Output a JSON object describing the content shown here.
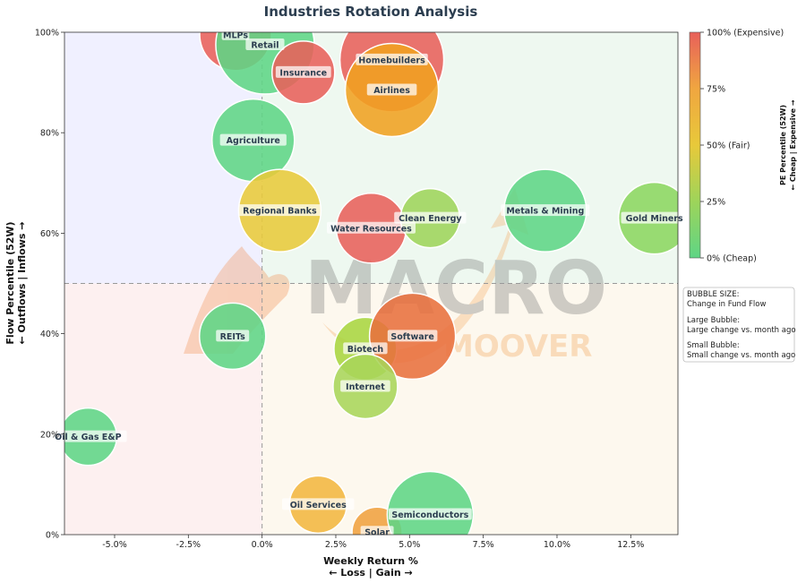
{
  "chart_data": {
    "type": "scatter",
    "title": "Industries Rotation Analysis",
    "xlabel_line1": "Weekly Return %",
    "xlabel_line2": "← Loss | Gain →",
    "ylabel_line1": "Flow Percentile (52W)",
    "ylabel_line2": "← Outflows | Inflows →",
    "xlim": [
      -6.7,
      14.1
    ],
    "ylim": [
      0,
      100
    ],
    "x_ticks": [
      -5.0,
      -2.5,
      0.0,
      2.5,
      5.0,
      7.5,
      10.0,
      12.5
    ],
    "x_tick_labels": [
      "-5.0%",
      "-2.5%",
      "0.0%",
      "2.5%",
      "5.0%",
      "7.5%",
      "10.0%",
      "12.5%"
    ],
    "y_ticks": [
      0,
      20,
      40,
      60,
      80,
      100
    ],
    "y_tick_labels": [
      "0%",
      "20%",
      "40%",
      "60%",
      "80%",
      "100%"
    ],
    "reference_lines": {
      "x": 0,
      "y": 50
    },
    "quadrant_colors": {
      "top_left": "#f0f0ff",
      "top_right": "#eef8f0",
      "bottom_left": "#fdf0f0",
      "bottom_right": "#fdf8ee"
    },
    "colorbar": {
      "title_line1": "PE Percentile (52W)",
      "title_line2": "← Cheap | Expensive →",
      "range": [
        0,
        100
      ],
      "colors": [
        "#5fd585",
        "#9ed45a",
        "#e8c93a",
        "#f0a640",
        "#e8605a"
      ],
      "ticks": [
        0,
        25,
        50,
        75,
        100
      ],
      "tick_labels": [
        "0% (Cheap)",
        "25%",
        "50% (Fair)",
        "75%",
        "100% (Expensive)"
      ]
    },
    "size_note": {
      "title": "BUBBLE SIZE:",
      "line1": "Change in Fund Flow",
      "large_title": "Large Bubble:",
      "large_desc": "Large change vs. month ago",
      "small_title": "Small Bubble:",
      "small_desc": "Small change vs. month ago"
    },
    "watermark": {
      "line1": "MACRO",
      "line2": "MOOVER"
    },
    "points": [
      {
        "name": "MLPs",
        "x": -0.9,
        "y": 99.5,
        "size": 40,
        "color": "#e8605a"
      },
      {
        "name": "Retail",
        "x": 0.1,
        "y": 97.5,
        "size": 55,
        "color": "#5fd585"
      },
      {
        "name": "Insurance",
        "x": 1.4,
        "y": 92,
        "size": 35,
        "color": "#e8605a"
      },
      {
        "name": "Homebuilders",
        "x": 4.4,
        "y": 94.5,
        "size": 58,
        "color": "#e8605a"
      },
      {
        "name": "Airlines",
        "x": 4.4,
        "y": 88.5,
        "size": 52,
        "color": "#f0a020"
      },
      {
        "name": "Agriculture",
        "x": -0.3,
        "y": 78.5,
        "size": 46,
        "color": "#5fd585"
      },
      {
        "name": "Regional Banks",
        "x": 0.6,
        "y": 64.5,
        "size": 46,
        "color": "#e8c93a"
      },
      {
        "name": "Water Resources",
        "x": 3.7,
        "y": 61,
        "size": 39,
        "color": "#e8605a"
      },
      {
        "name": "Clean Energy",
        "x": 5.7,
        "y": 63,
        "size": 33,
        "color": "#9ed45a"
      },
      {
        "name": "Metals & Mining",
        "x": 9.6,
        "y": 64.5,
        "size": 46,
        "color": "#5fd585"
      },
      {
        "name": "Gold Miners",
        "x": 13.3,
        "y": 63,
        "size": 40,
        "color": "#8cd660"
      },
      {
        "name": "REITs",
        "x": -1.0,
        "y": 39.5,
        "size": 37,
        "color": "#5fd585"
      },
      {
        "name": "Biotech",
        "x": 3.5,
        "y": 37,
        "size": 35,
        "color": "#a8d540"
      },
      {
        "name": "Software",
        "x": 5.1,
        "y": 39.5,
        "size": 48,
        "color": "#e8703e"
      },
      {
        "name": "Internet",
        "x": 3.5,
        "y": 29.5,
        "size": 36,
        "color": "#a8d55a"
      },
      {
        "name": "Oil & Gas E&P",
        "x": -5.9,
        "y": 19.5,
        "size": 32,
        "color": "#5fd585"
      },
      {
        "name": "Oil Services",
        "x": 1.9,
        "y": 6,
        "size": 32,
        "color": "#f2b640"
      },
      {
        "name": "Solar",
        "x": 3.9,
        "y": 0.5,
        "size": 28,
        "color": "#f0a040"
      },
      {
        "name": "Semiconductors",
        "x": 5.7,
        "y": 4,
        "size": 48,
        "color": "#5fd585"
      }
    ]
  }
}
